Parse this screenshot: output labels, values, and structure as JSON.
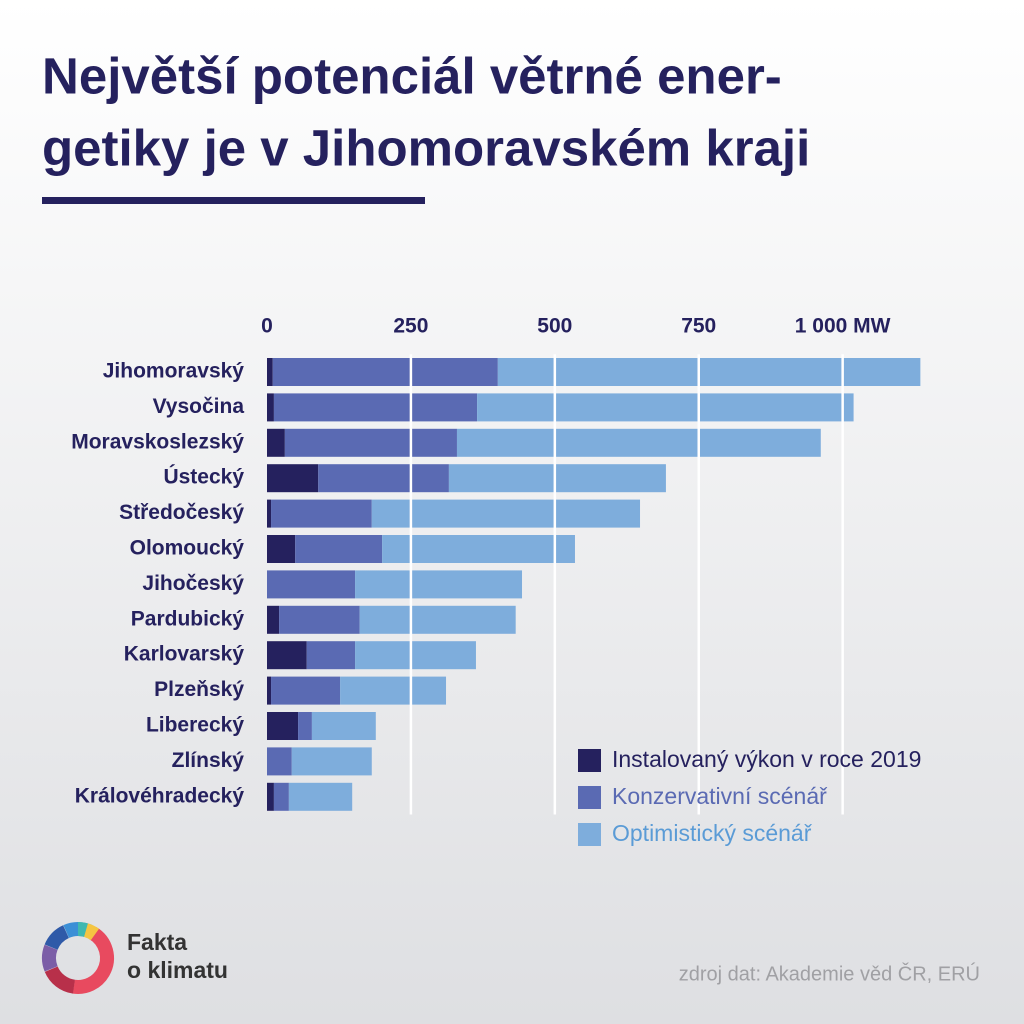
{
  "chart_data": {
    "type": "stacked-barh",
    "title": [
      "Největší potenciál větrné ener-",
      "getiky je v Jihomoravském kraji"
    ],
    "categories": [
      "Jihomoravský",
      "Vysočina",
      "Moravskoslezský",
      "Ústecký",
      "Středočeský",
      "Olomoucký",
      "Jihočeský",
      "Pardubický",
      "Karlovarský",
      "Plzeňský",
      "Liberecký",
      "Zlínský",
      "Královéhradecký"
    ],
    "series": [
      {
        "name": "Instalovaný výkon v roce 2019",
        "color": "#25215e",
        "values": [
          10,
          12,
          31,
          89,
          7,
          49,
          0,
          21,
          69,
          7,
          54,
          0,
          12
        ]
      },
      {
        "name": "Konzervativní scénář",
        "color": "#5a6ab3",
        "values": [
          391,
          353,
          299,
          227,
          175,
          151,
          153,
          140,
          84,
          120,
          24,
          43,
          26
        ]
      },
      {
        "name": "Optimistický scénář",
        "color": "#7eaddc",
        "values": [
          734,
          654,
          632,
          377,
          466,
          335,
          290,
          271,
          210,
          184,
          111,
          139,
          110
        ]
      }
    ],
    "xlim": [
      0,
      1150
    ],
    "xticks": [
      0,
      250,
      500,
      750,
      {
        "value": 1000,
        "label": "1 000 MW"
      }
    ],
    "grid": true,
    "logo": [
      "Fakta",
      "o klimatu"
    ],
    "source": "zdroj dat: Akademie věd ČR, ERÚ"
  }
}
